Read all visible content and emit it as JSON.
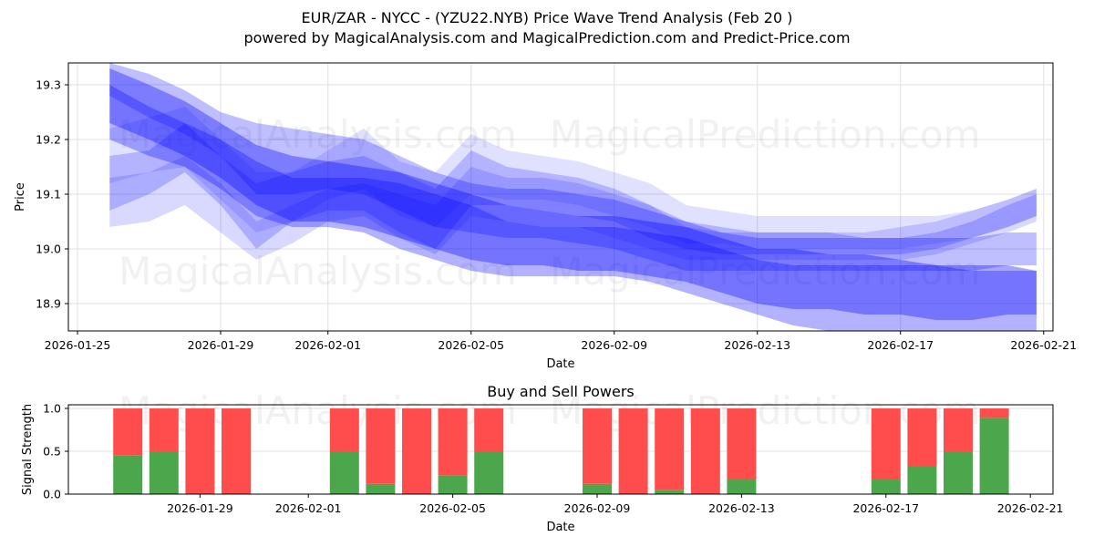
{
  "header": {
    "title": "EUR/ZAR - NYCC -  (YZU22.NYB) Price Wave Trend Analysis (Feb 20 )",
    "subtitle": "powered by MagicalAnalysis.com and MagicalPrediction.com and Predict-Price.com"
  },
  "watermarks": [
    "MagicalAnalysis.com",
    "MagicalPrediction.com"
  ],
  "colors": {
    "band": "#0000ff",
    "buy": "#4ca64c",
    "sell": "#ff4c4c",
    "grid": "#e0e0e0"
  },
  "chart_data": [
    {
      "type": "area",
      "title": "EUR/ZAR - NYCC -  (YZU22.NYB) Price Wave Trend Analysis (Feb 20 )",
      "xlabel": "Date",
      "ylabel": "Price",
      "ylim": [
        18.85,
        19.34
      ],
      "xlim": [
        "2026-01-24.8",
        "2026-02-21.3"
      ],
      "grid": true,
      "xticks": [
        "2026-01-25",
        "2026-01-29",
        "2026-02-01",
        "2026-02-05",
        "2026-02-09",
        "2026-02-13",
        "2026-02-17",
        "2026-02-21"
      ],
      "yticks": [
        "18.9",
        "19.0",
        "19.1",
        "19.2",
        "19.3"
      ],
      "x_days": [
        0.9,
        2,
        3,
        4,
        5,
        6,
        7,
        8,
        9,
        10,
        11,
        12,
        13,
        14,
        15,
        16,
        17,
        18,
        19,
        20,
        21,
        22,
        23,
        24,
        25,
        26,
        26.8
      ],
      "series": [
        {
          "name": "band1",
          "opacity": 0.35,
          "upper": [
            19.33,
            19.3,
            19.27,
            19.23,
            19.19,
            19.17,
            19.16,
            19.15,
            19.14,
            19.12,
            19.1,
            19.08,
            19.07,
            19.06,
            19.06,
            19.05,
            19.04,
            19.02,
            19.0,
            19.0,
            18.99,
            18.99,
            18.98,
            18.97,
            18.97,
            18.97,
            18.96
          ],
          "lower": [
            19.23,
            19.2,
            19.17,
            19.13,
            19.08,
            19.05,
            19.05,
            19.04,
            19.02,
            19.0,
            18.98,
            18.97,
            18.97,
            18.96,
            18.96,
            18.95,
            18.94,
            18.92,
            18.9,
            18.89,
            18.89,
            18.88,
            18.88,
            18.87,
            18.87,
            18.88,
            18.88
          ]
        },
        {
          "name": "band2",
          "opacity": 0.3,
          "upper": [
            19.3,
            19.26,
            19.23,
            19.2,
            19.16,
            19.13,
            19.13,
            19.13,
            19.12,
            19.1,
            19.08,
            19.05,
            19.04,
            19.04,
            19.04,
            19.03,
            19.02,
            19.0,
            18.98,
            18.97,
            18.97,
            18.97,
            18.97,
            18.97,
            18.96,
            18.96,
            18.96
          ],
          "lower": [
            19.2,
            19.17,
            19.15,
            19.11,
            19.06,
            19.04,
            19.04,
            19.03,
            19.0,
            18.98,
            18.96,
            18.95,
            18.95,
            18.95,
            18.95,
            18.94,
            18.92,
            18.9,
            18.88,
            18.86,
            18.85,
            18.84,
            18.84,
            18.83,
            18.83,
            18.83,
            18.83
          ]
        },
        {
          "name": "band3",
          "opacity": 0.25,
          "upper": [
            19.34,
            19.32,
            19.29,
            19.25,
            19.23,
            19.22,
            19.21,
            19.2,
            19.17,
            19.14,
            19.12,
            19.11,
            19.11,
            19.1,
            19.09,
            19.07,
            19.05,
            19.03,
            19.02,
            19.02,
            19.02,
            19.02,
            19.02,
            19.02,
            19.02,
            19.03,
            19.03
          ],
          "lower": [
            19.28,
            19.24,
            19.21,
            19.17,
            19.1,
            19.1,
            19.11,
            19.1,
            19.07,
            19.04,
            19.03,
            19.02,
            19.02,
            19.01,
            19.0,
            18.98,
            18.96,
            18.96,
            18.96,
            18.96,
            18.96,
            18.96,
            18.96,
            18.96,
            18.96,
            18.97,
            18.97
          ]
        },
        {
          "name": "band4",
          "opacity": 0.2,
          "upper": [
            19.17,
            19.18,
            19.23,
            19.17,
            19.12,
            19.14,
            19.16,
            19.17,
            19.14,
            19.11,
            19.18,
            19.15,
            19.14,
            19.13,
            19.11,
            19.08,
            19.05,
            19.04,
            19.03,
            19.03,
            19.03,
            19.02,
            19.02,
            19.03,
            19.05,
            19.08,
            19.1
          ],
          "lower": [
            19.07,
            19.1,
            19.14,
            19.08,
            19.0,
            19.05,
            19.07,
            19.07,
            19.03,
            19.0,
            19.08,
            19.08,
            19.07,
            19.06,
            19.05,
            19.02,
            19.0,
            18.99,
            18.99,
            18.99,
            18.99,
            18.99,
            18.99,
            19.0,
            19.02,
            19.04,
            19.06
          ]
        },
        {
          "name": "band5",
          "opacity": 0.15,
          "upper": [
            19.13,
            19.14,
            19.17,
            19.12,
            19.05,
            19.08,
            19.11,
            19.12,
            19.1,
            19.08,
            19.15,
            19.13,
            19.13,
            19.12,
            19.1,
            19.08,
            19.04,
            19.03,
            19.03,
            19.03,
            19.03,
            19.03,
            19.04,
            19.05,
            19.07,
            19.09,
            19.11
          ],
          "lower": [
            19.04,
            19.05,
            19.08,
            19.03,
            18.98,
            19.01,
            19.05,
            19.06,
            19.02,
            18.99,
            19.06,
            19.05,
            19.04,
            19.04,
            19.02,
            19.0,
            18.98,
            18.98,
            18.98,
            18.98,
            18.98,
            18.98,
            18.98,
            18.99,
            19.01,
            19.03,
            19.05
          ]
        },
        {
          "name": "band6",
          "opacity": 0.12,
          "upper": [
            19.22,
            19.24,
            19.26,
            19.2,
            19.14,
            19.14,
            19.18,
            19.22,
            19.16,
            19.14,
            19.21,
            19.18,
            19.17,
            19.16,
            19.14,
            19.12,
            19.08,
            19.07,
            19.06,
            19.06,
            19.06,
            19.06,
            19.06,
            19.06,
            19.07,
            19.09,
            19.11
          ],
          "lower": [
            19.12,
            19.14,
            19.15,
            19.09,
            19.03,
            19.05,
            19.09,
            19.11,
            19.06,
            19.04,
            19.1,
            19.09,
            19.09,
            19.08,
            19.06,
            19.04,
            19.01,
            19.01,
            19.0,
            19.0,
            19.0,
            19.0,
            19.0,
            19.01,
            19.02,
            19.04,
            19.06
          ]
        }
      ]
    },
    {
      "type": "bar",
      "title": "Buy and Sell Powers",
      "xlabel": "Date",
      "ylabel": "Signal Strength",
      "ylim": [
        0,
        1.05
      ],
      "yticks": [
        "0.0",
        "0.5",
        "1.0"
      ],
      "xticks": [
        "2026-01-29",
        "2026-02-01",
        "2026-02-05",
        "2026-02-09",
        "2026-02-13",
        "2026-02-17",
        "2026-02-21"
      ],
      "categories": [
        "2026-01-27",
        "2026-01-28",
        "2026-01-29",
        "2026-01-30",
        "2026-02-02",
        "2026-02-03",
        "2026-02-04",
        "2026-02-05",
        "2026-02-06",
        "2026-02-09",
        "2026-02-10",
        "2026-02-11",
        "2026-02-12",
        "2026-02-13",
        "2026-02-17",
        "2026-02-18",
        "2026-02-19",
        "2026-02-20"
      ],
      "day_offsets": [
        2,
        3,
        4,
        5,
        8,
        9,
        10,
        11,
        12,
        15,
        16,
        17,
        18,
        19,
        23,
        24,
        25,
        26
      ],
      "series": [
        {
          "name": "Buy",
          "values": [
            0.45,
            0.5,
            0.0,
            0.0,
            0.5,
            0.12,
            0.0,
            0.22,
            0.5,
            0.12,
            0.0,
            0.05,
            0.0,
            0.17,
            0.17,
            0.33,
            0.5,
            0.89
          ]
        },
        {
          "name": "Sell",
          "values": [
            0.55,
            0.5,
            1.0,
            1.0,
            0.5,
            0.88,
            1.0,
            0.78,
            0.5,
            0.88,
            1.0,
            0.95,
            1.0,
            0.83,
            0.83,
            0.67,
            0.5,
            0.11
          ]
        }
      ]
    }
  ]
}
